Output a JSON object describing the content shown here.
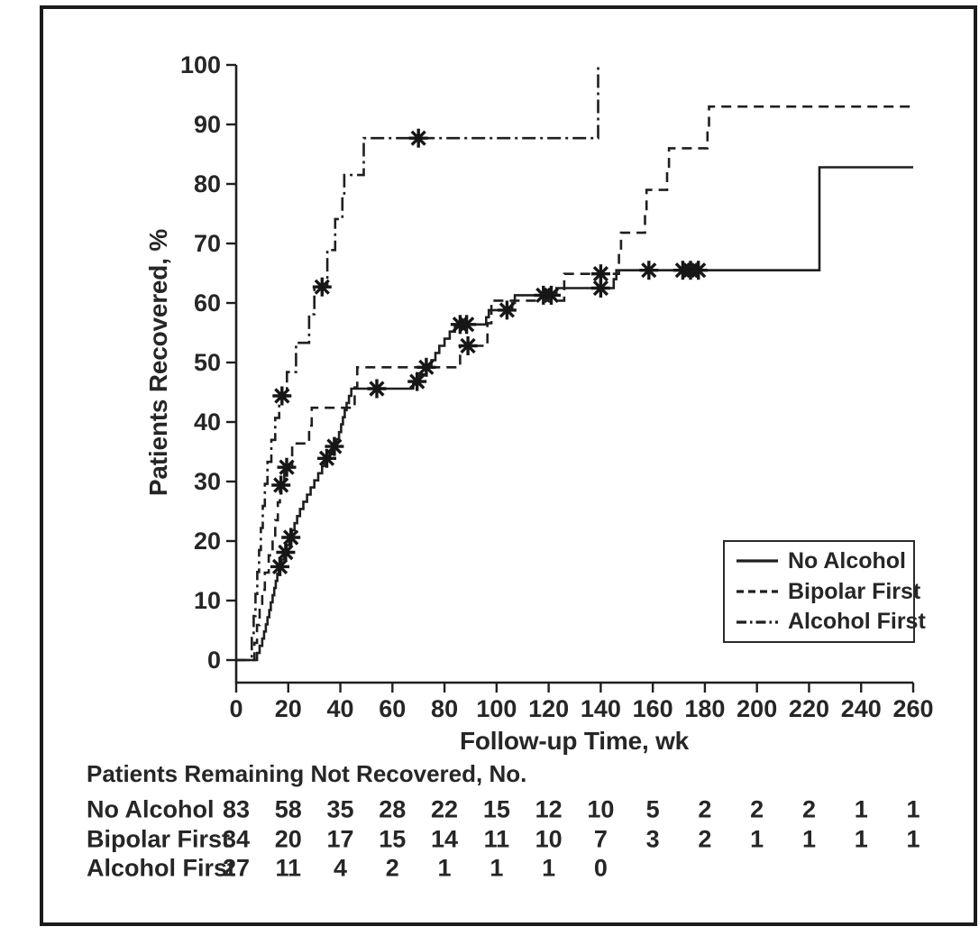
{
  "figure": {
    "type_label": "Kaplan-Meier recovery curves"
  },
  "chart_data": {
    "type": "line",
    "subtype": "kaplan-meier-step",
    "title": "",
    "xlabel": "Follow-up Time, wk",
    "ylabel": "Patients Recovered, %",
    "xlim": [
      0,
      260
    ],
    "ylim": [
      0,
      100
    ],
    "xticks": [
      0,
      20,
      40,
      60,
      80,
      100,
      120,
      140,
      160,
      180,
      200,
      220,
      240,
      260
    ],
    "yticks": [
      0,
      10,
      20,
      30,
      40,
      50,
      60,
      70,
      80,
      90,
      100
    ],
    "grid": false,
    "legend_position": "lower right",
    "line_color": "#1f1f1f",
    "series": [
      {
        "name": "No Alcohol",
        "line": "solid",
        "end": 260,
        "steps": [
          [
            0,
            0
          ],
          [
            8,
            1.2
          ],
          [
            9,
            2.4
          ],
          [
            10,
            3.6
          ],
          [
            10.7,
            4.8
          ],
          [
            11.4,
            6
          ],
          [
            12,
            7.2
          ],
          [
            12.7,
            8.4
          ],
          [
            13.3,
            9.7
          ],
          [
            14,
            10.9
          ],
          [
            14.6,
            12.1
          ],
          [
            15.2,
            13.3
          ],
          [
            15.8,
            14.5
          ],
          [
            16.4,
            15.7
          ],
          [
            17.4,
            16.9
          ],
          [
            18.4,
            18.1
          ],
          [
            19.4,
            19.3
          ],
          [
            20.4,
            20.6
          ],
          [
            21.4,
            21.8
          ],
          [
            22.4,
            23
          ],
          [
            23.4,
            24.2
          ],
          [
            24.5,
            25.4
          ],
          [
            25.8,
            26.6
          ],
          [
            27.2,
            27.8
          ],
          [
            28.6,
            29
          ],
          [
            30,
            30.2
          ],
          [
            31.5,
            31.4
          ],
          [
            33,
            32.6
          ],
          [
            33.8,
            33.9
          ],
          [
            36,
            34.6
          ],
          [
            37,
            35.9
          ],
          [
            38.5,
            37.1
          ],
          [
            39.5,
            38.3
          ],
          [
            40.3,
            39.6
          ],
          [
            41,
            40.8
          ],
          [
            41.7,
            42
          ],
          [
            42.4,
            43.2
          ],
          [
            43.3,
            44.4
          ],
          [
            44.2,
            45.6
          ],
          [
            68,
            46.8
          ],
          [
            70.5,
            48
          ],
          [
            73,
            49.2
          ],
          [
            75,
            50.4
          ],
          [
            76.5,
            51.6
          ],
          [
            78,
            52.8
          ],
          [
            80,
            54
          ],
          [
            82,
            55.2
          ],
          [
            84,
            56.4
          ],
          [
            96,
            57.6
          ],
          [
            97,
            58.8
          ],
          [
            106,
            60
          ],
          [
            107,
            61.3
          ],
          [
            123,
            62.5
          ],
          [
            145,
            64
          ],
          [
            146,
            65.5
          ],
          [
            224,
            82.8
          ]
        ],
        "censors": [
          [
            16.8,
            15.7
          ],
          [
            19,
            18.1
          ],
          [
            21,
            20.6
          ],
          [
            34.8,
            33.9
          ],
          [
            37.7,
            35.9
          ],
          [
            54,
            45.6
          ],
          [
            69.5,
            46.8
          ],
          [
            86,
            56.4
          ],
          [
            88.5,
            56.4
          ],
          [
            104,
            58.8
          ],
          [
            118,
            61.3
          ],
          [
            121,
            61.3
          ],
          [
            140,
            62.5
          ],
          [
            158.5,
            65.5
          ],
          [
            171.5,
            65.5
          ],
          [
            174.5,
            65.5
          ],
          [
            177.5,
            65.5
          ]
        ]
      },
      {
        "name": "Bipolar First",
        "line": "dashed",
        "end": 260,
        "steps": [
          [
            0,
            0
          ],
          [
            7,
            2.9
          ],
          [
            8,
            5.9
          ],
          [
            9,
            8.8
          ],
          [
            10,
            11.8
          ],
          [
            11,
            14.7
          ],
          [
            12.5,
            17.6
          ],
          [
            14,
            20.6
          ],
          [
            15,
            23.5
          ],
          [
            16,
            26.5
          ],
          [
            16.8,
            29.4
          ],
          [
            18.5,
            32.4
          ],
          [
            21.5,
            36.4
          ],
          [
            28,
            39.4
          ],
          [
            29,
            42.4
          ],
          [
            45.5,
            45.8
          ],
          [
            46.5,
            49.2
          ],
          [
            86,
            52.8
          ],
          [
            96.5,
            56.6
          ],
          [
            98,
            60.4
          ],
          [
            126,
            64.9
          ],
          [
            147,
            68.4
          ],
          [
            147.8,
            71.8
          ],
          [
            157,
            75.4
          ],
          [
            157.6,
            79
          ],
          [
            165.5,
            82.5
          ],
          [
            166.2,
            86
          ],
          [
            181,
            89.5
          ],
          [
            181.6,
            93
          ]
        ],
        "censors": [
          [
            17.2,
            29.4
          ],
          [
            19.4,
            32.4
          ],
          [
            73,
            49.2
          ],
          [
            89,
            52.8
          ],
          [
            140,
            64.9
          ]
        ]
      },
      {
        "name": "Alcohol First",
        "line": "dashdot",
        "end": 139.3,
        "steps": [
          [
            0,
            0
          ],
          [
            6,
            3.7
          ],
          [
            6.7,
            7.4
          ],
          [
            7.4,
            11.1
          ],
          [
            8.1,
            14.8
          ],
          [
            8.8,
            18.5
          ],
          [
            9.5,
            22.2
          ],
          [
            10.2,
            25.9
          ],
          [
            11,
            29.6
          ],
          [
            12,
            33.3
          ],
          [
            13.5,
            37
          ],
          [
            15,
            40.7
          ],
          [
            16.5,
            44.4
          ],
          [
            19.5,
            48.4
          ],
          [
            23,
            53.3
          ],
          [
            28,
            58.1
          ],
          [
            30,
            62.7
          ],
          [
            35,
            68.9
          ],
          [
            38,
            74.1
          ],
          [
            40.8,
            77.8
          ],
          [
            41.5,
            81.5
          ],
          [
            49,
            87.7
          ],
          [
            139,
            100
          ]
        ],
        "censors": [
          [
            17.6,
            44.4
          ],
          [
            33,
            62.7
          ],
          [
            70,
            87.7
          ]
        ]
      }
    ],
    "risk_table": {
      "title": "Patients Remaining Not Recovered, No.",
      "ticks": [
        0,
        20,
        40,
        60,
        80,
        100,
        120,
        140,
        160,
        180,
        200,
        220,
        240,
        260
      ],
      "rows": [
        {
          "label": "No Alcohol",
          "values": [
            83,
            58,
            35,
            28,
            22,
            15,
            12,
            10,
            5,
            2,
            2,
            2,
            1,
            1
          ]
        },
        {
          "label": "Bipolar First",
          "values": [
            34,
            20,
            17,
            15,
            14,
            11,
            10,
            7,
            3,
            2,
            1,
            1,
            1,
            1
          ]
        },
        {
          "label": "Alcohol First",
          "values": [
            27,
            11,
            4,
            2,
            1,
            1,
            1,
            0
          ]
        }
      ]
    }
  }
}
